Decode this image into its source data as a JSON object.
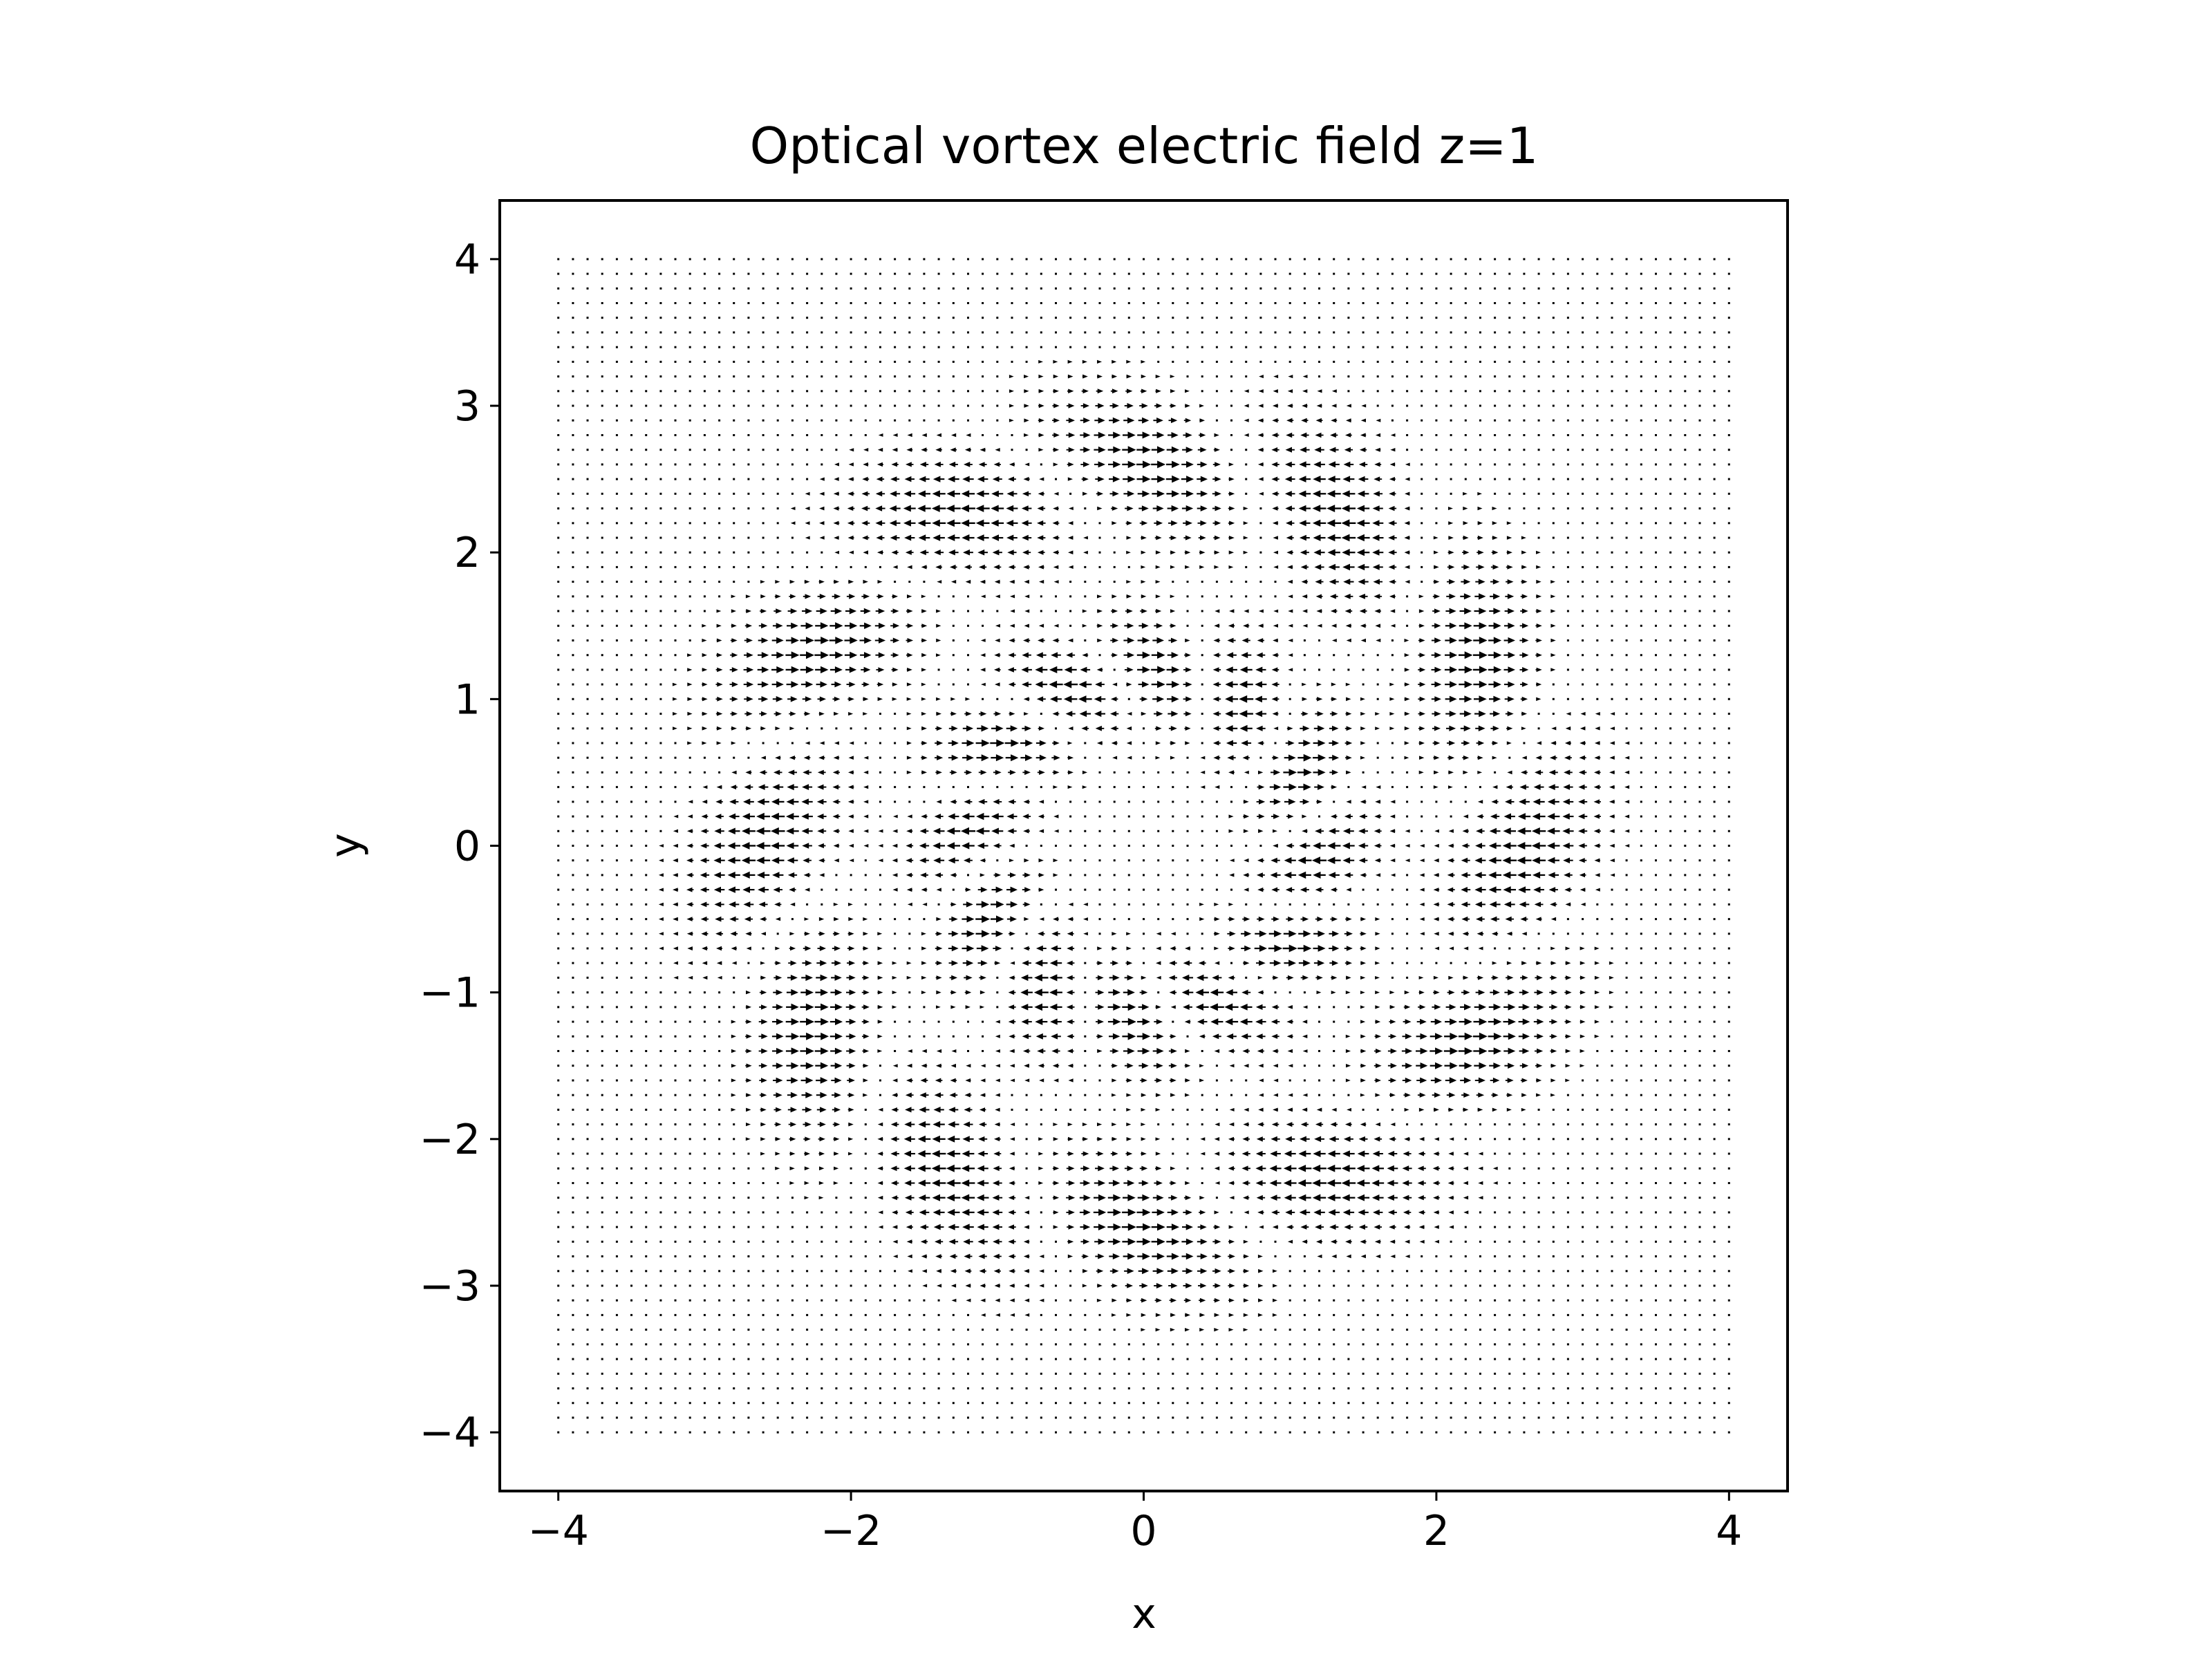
{
  "chart_data": {
    "type": "quiver",
    "title": "Optical vortex electric field z=1",
    "xlabel": "x",
    "ylabel": "y",
    "xlim": [
      -4.4,
      4.4
    ],
    "ylim": [
      -4.4,
      4.4
    ],
    "x_ticks": [
      -4,
      -2,
      0,
      2,
      4
    ],
    "y_ticks": [
      -4,
      -3,
      -2,
      -1,
      0,
      1,
      2,
      3,
      4
    ],
    "x_tick_labels": [
      "−4",
      "−2",
      "0",
      "2",
      "4"
    ],
    "y_tick_labels": [
      "−4",
      "−3",
      "−2",
      "−1",
      "0",
      "1",
      "2",
      "3",
      "4"
    ],
    "grid": {
      "x_range": [
        -4,
        4
      ],
      "y_range": [
        -4,
        4
      ],
      "points_per_axis": 81
    },
    "field": {
      "component": "horizontal",
      "model": "Laguerre-Gaussian-like optical vortex, 12 petal lobes on two rings",
      "inner_ring_radius": 1.2,
      "outer_ring_radius": 2.6,
      "petals_per_ring": 12
    },
    "arrow_color": "#000000",
    "grid_on": false,
    "legend": "none"
  }
}
